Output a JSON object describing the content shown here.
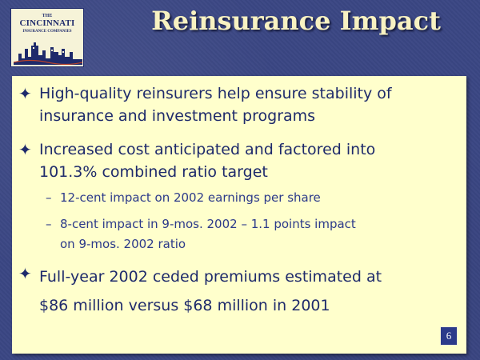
{
  "logo": {
    "small": "THE",
    "main": "CINCINNATI",
    "sub": "INSURANCE COMPANIES"
  },
  "title": "Reinsurance Impact",
  "bullets": [
    {
      "mark": "✦",
      "lines": [
        "High-quality reinsurers help ensure stability of",
        "insurance and investment programs"
      ]
    },
    {
      "mark": "✦",
      "lines": [
        "Increased cost anticipated and factored into",
        "101.3% combined ratio target"
      ],
      "subs": [
        {
          "mark": "–",
          "lines": [
            "12-cent impact on 2002 earnings per share"
          ]
        },
        {
          "mark": "–",
          "lines": [
            "8-cent impact in 9-mos. 2002 – 1.1 points impact",
            "on 9-mos. 2002 ratio"
          ]
        }
      ]
    },
    {
      "mark": "✦",
      "lines": [
        "Full-year 2002 ceded premiums estimated at",
        "$86 million versus $68 million in 2001"
      ]
    }
  ],
  "page_number": "6"
}
